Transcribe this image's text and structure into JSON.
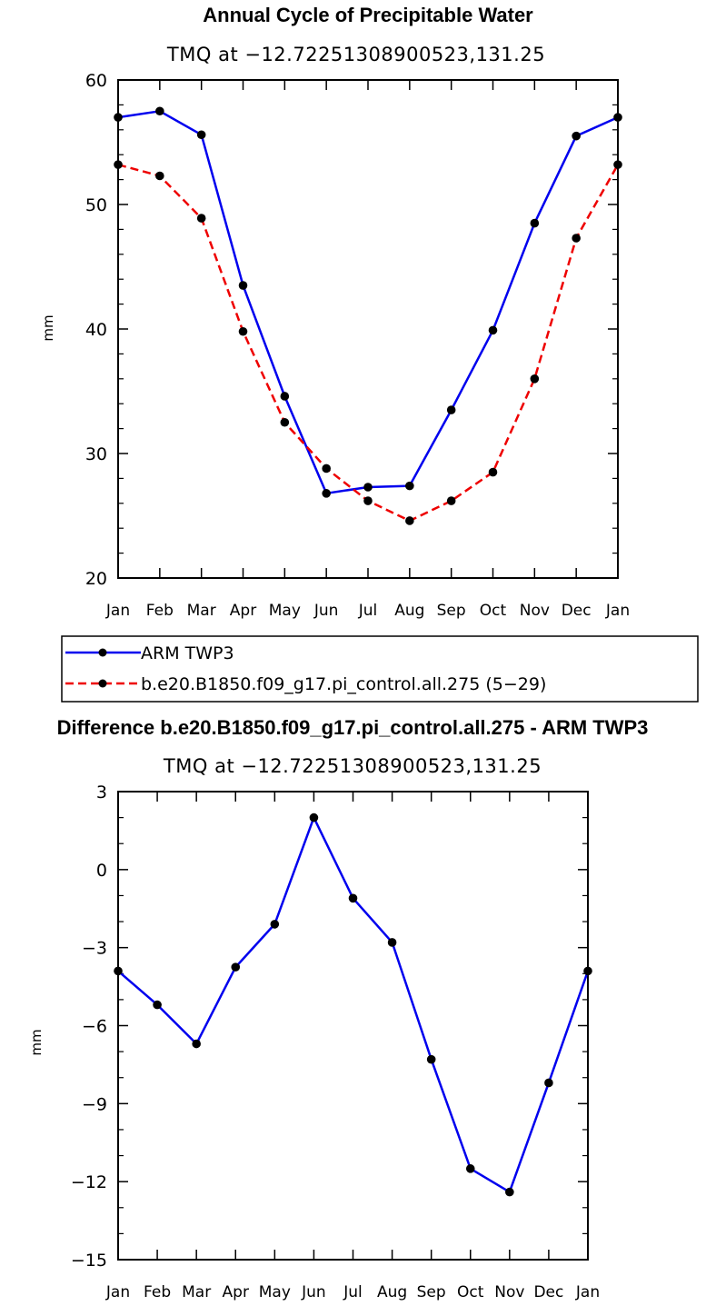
{
  "chart_data": [
    {
      "type": "line",
      "title": "Annual Cycle of Precipitable Water",
      "subtitle": "TMQ at −12.72251308900523,131.25",
      "xlabel": "",
      "ylabel": "mm",
      "categories": [
        "Jan",
        "Feb",
        "Mar",
        "Apr",
        "May",
        "Jun",
        "Jul",
        "Aug",
        "Sep",
        "Oct",
        "Nov",
        "Dec",
        "Jan"
      ],
      "ylim": [
        20,
        60
      ],
      "yticks": [
        20,
        30,
        40,
        50,
        60
      ],
      "yticklabels": [
        "20",
        "30",
        "40",
        "50",
        "60"
      ],
      "series": [
        {
          "name": "ARM TWP3",
          "color": "#0000ee",
          "dash": "solid",
          "values": [
            57.0,
            57.5,
            55.6,
            43.5,
            34.6,
            26.8,
            27.3,
            27.4,
            33.5,
            39.9,
            48.5,
            55.5,
            57.0
          ]
        },
        {
          "name": "b.e20.B1850.f09_g17.pi_control.all.275 (5−29)",
          "color": "#ee0000",
          "dash": "dashed",
          "values": [
            53.2,
            52.3,
            48.9,
            39.8,
            32.5,
            28.8,
            26.2,
            24.6,
            26.2,
            28.5,
            36.0,
            47.3,
            53.2
          ]
        }
      ],
      "legend_position": "below"
    },
    {
      "type": "line",
      "title": "Difference b.e20.B1850.f09_g17.pi_control.all.275 - ARM TWP3",
      "subtitle": "TMQ at −12.72251308900523,131.25",
      "xlabel": "",
      "ylabel": "mm",
      "categories": [
        "Jan",
        "Feb",
        "Mar",
        "Apr",
        "May",
        "Jun",
        "Jul",
        "Aug",
        "Sep",
        "Oct",
        "Nov",
        "Dec",
        "Jan"
      ],
      "ylim": [
        -15,
        3
      ],
      "yticks": [
        -15,
        -12,
        -9,
        -6,
        -3,
        0,
        3
      ],
      "yticklabels": [
        "−15",
        "−12",
        "−9",
        "−6",
        "−3",
        "0",
        "3"
      ],
      "series": [
        {
          "name": "Difference",
          "color": "#0000ee",
          "dash": "solid",
          "values": [
            -3.9,
            -5.2,
            -6.7,
            -3.75,
            -2.1,
            2.0,
            -1.1,
            -2.8,
            -7.3,
            -11.5,
            -12.4,
            -8.2,
            -3.9
          ]
        }
      ]
    }
  ]
}
